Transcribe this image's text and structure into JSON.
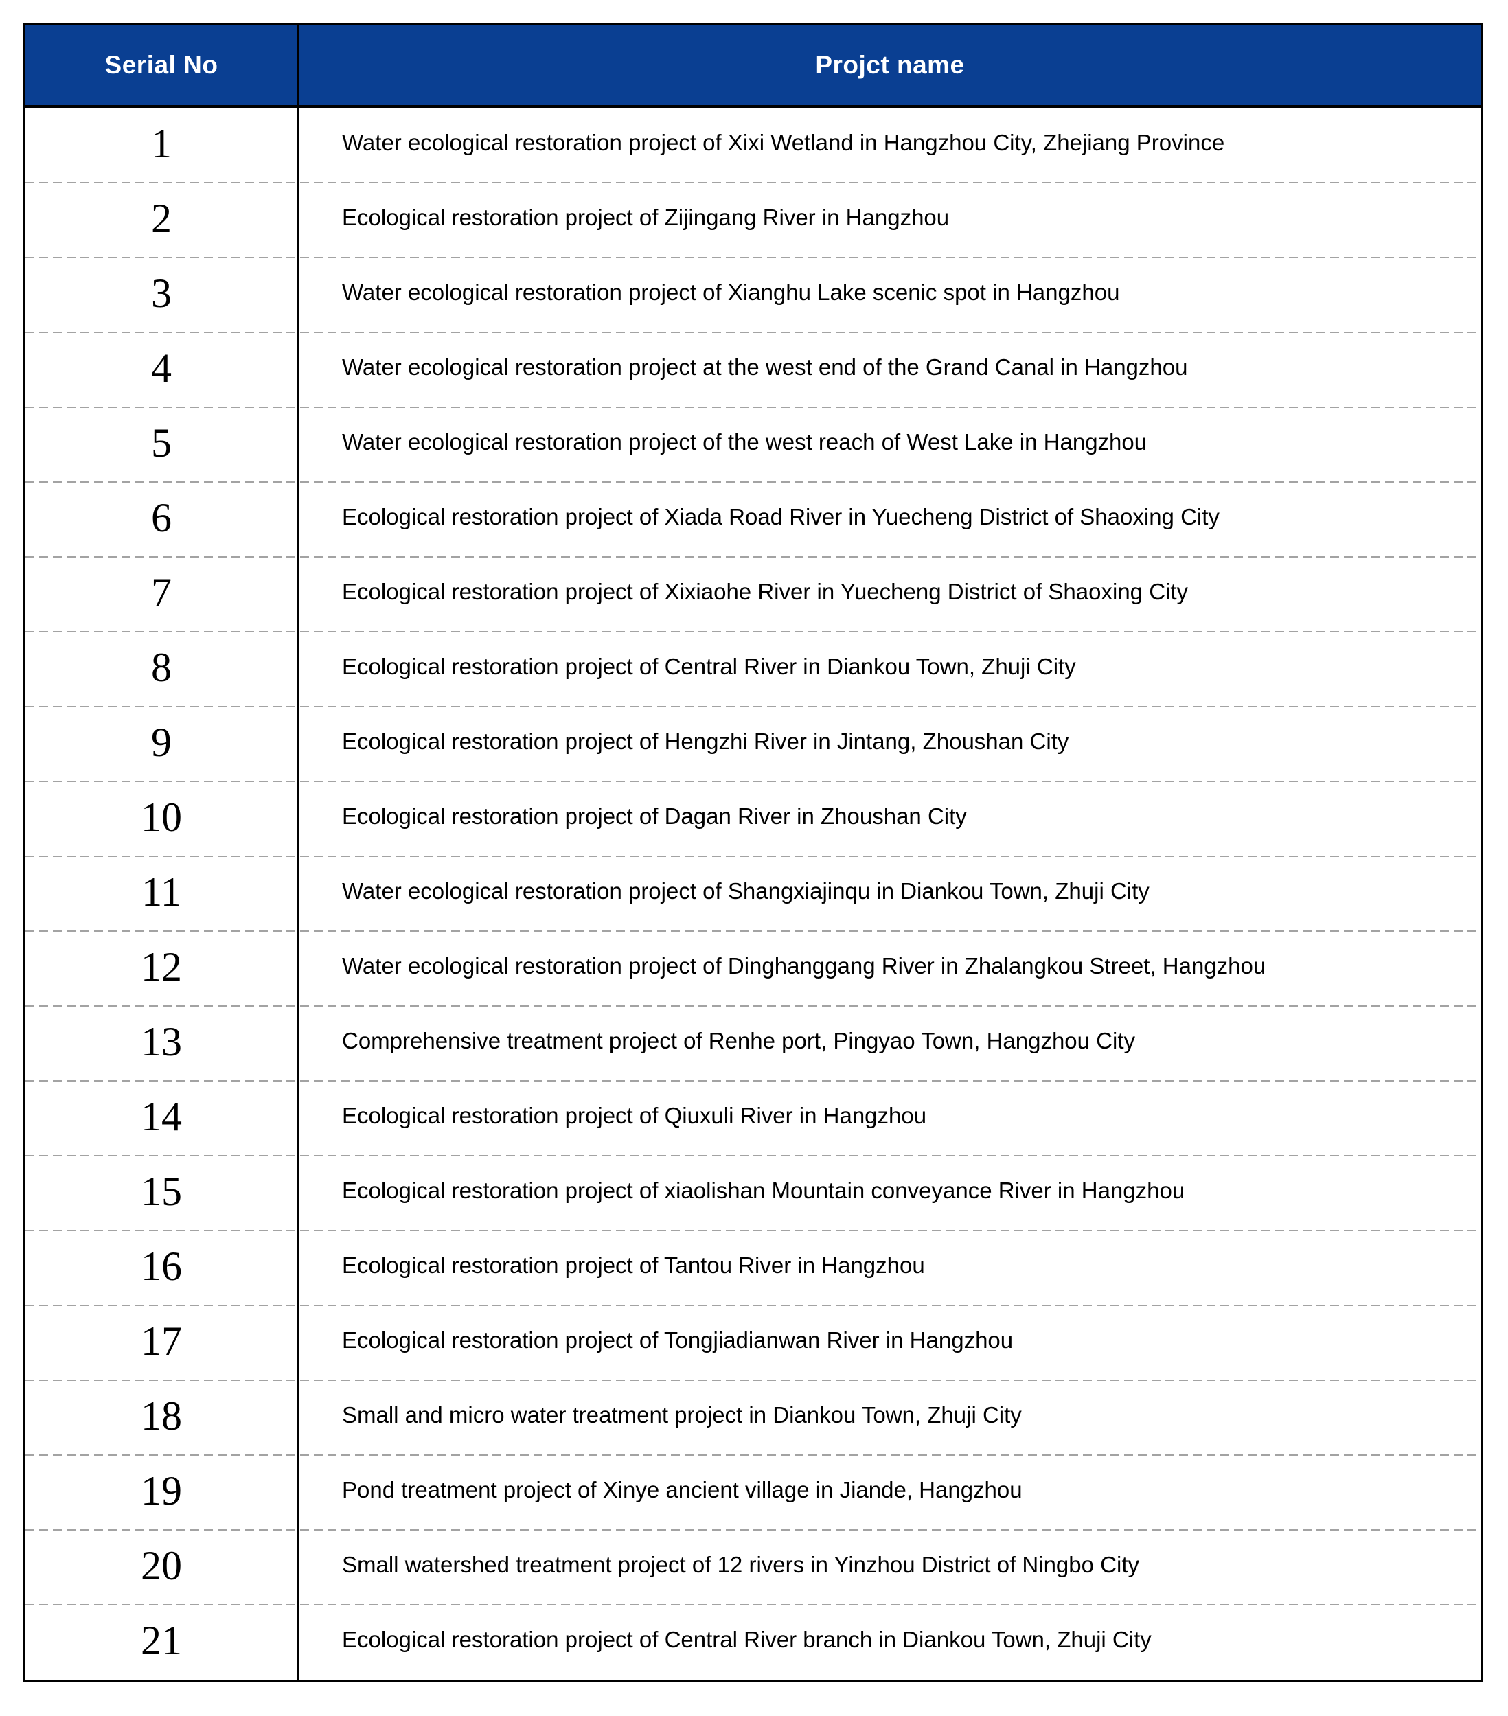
{
  "table": {
    "columns": [
      {
        "label": "Serial No"
      },
      {
        "label": "Projct name"
      }
    ],
    "rows": [
      {
        "serial": "1",
        "name": "Water ecological restoration project of Xixi Wetland in Hangzhou City, Zhejiang Province"
      },
      {
        "serial": "2",
        "name": "Ecological restoration project of Zijingang River in Hangzhou"
      },
      {
        "serial": "3",
        "name": "Water ecological restoration project of Xianghu Lake scenic spot in Hangzhou"
      },
      {
        "serial": "4",
        "name": "Water ecological restoration project at the west end of the Grand Canal in Hangzhou"
      },
      {
        "serial": "5",
        "name": "Water ecological restoration project of the west reach of West Lake in Hangzhou"
      },
      {
        "serial": "6",
        "name": "Ecological restoration project of Xiada Road River in Yuecheng District of Shaoxing City"
      },
      {
        "serial": "7",
        "name": "Ecological restoration project of Xixiaohe River in Yuecheng District of Shaoxing City"
      },
      {
        "serial": "8",
        "name": "Ecological restoration project of Central River in Diankou Town, Zhuji City"
      },
      {
        "serial": "9",
        "name": "Ecological restoration project of Hengzhi River in Jintang, Zhoushan City"
      },
      {
        "serial": "10",
        "name": "Ecological restoration project of Dagan River in Zhoushan City"
      },
      {
        "serial": "11",
        "name": "Water ecological restoration project of Shangxiajinqu in Diankou Town, Zhuji City"
      },
      {
        "serial": "12",
        "name": "Water ecological restoration project of Dinghanggang River in Zhalangkou Street, Hangzhou"
      },
      {
        "serial": "13",
        "name": "Comprehensive treatment project of Renhe port, Pingyao Town, Hangzhou City"
      },
      {
        "serial": "14",
        "name": "Ecological restoration project of Qiuxuli River in Hangzhou"
      },
      {
        "serial": "15",
        "name": "Ecological restoration project of xiaolishan Mountain conveyance River in Hangzhou"
      },
      {
        "serial": "16",
        "name": "Ecological restoration project of Tantou River in Hangzhou"
      },
      {
        "serial": "17",
        "name": "Ecological restoration project of Tongjiadianwan River in Hangzhou"
      },
      {
        "serial": "18",
        "name": "Small and micro water treatment project in Diankou Town, Zhuji City"
      },
      {
        "serial": "19",
        "name": "Pond treatment project of Xinye ancient village in Jiande, Hangzhou"
      },
      {
        "serial": "20",
        "name": "Small watershed treatment project of 12 rivers in Yinzhou District of Ningbo City"
      },
      {
        "serial": "21",
        "name": "Ecological restoration project of Central River branch in Diankou Town, Zhuji City"
      }
    ],
    "colors": {
      "header_bg": "#0A3F92",
      "header_text": "#FFFFFF",
      "border": "#000000",
      "row_divider": "#A3A3A3",
      "body_text": "#000000"
    }
  }
}
